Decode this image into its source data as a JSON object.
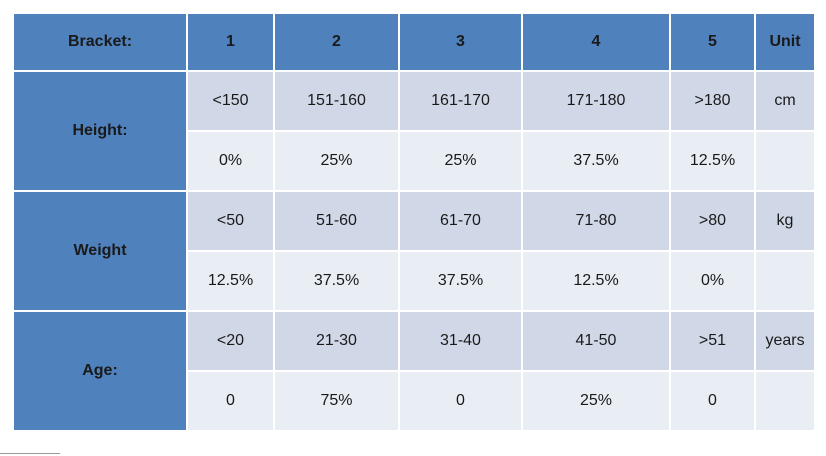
{
  "header": {
    "bracket_label": "Bracket:",
    "brackets": [
      "1",
      "2",
      "3",
      "4",
      "5"
    ],
    "unit_label": "Unit"
  },
  "rows": [
    {
      "label": "Height:",
      "ranges": [
        "<150",
        "151-160",
        "161-170",
        "171-180",
        ">180"
      ],
      "unit": "cm",
      "shares": [
        "0%",
        "25%",
        "25%",
        "37.5%",
        "12.5%"
      ]
    },
    {
      "label": "Weight",
      "ranges": [
        "<50",
        "51-60",
        "61-70",
        "71-80",
        ">80"
      ],
      "unit": "kg",
      "shares": [
        "12.5%",
        "37.5%",
        "37.5%",
        "12.5%",
        "0%"
      ]
    },
    {
      "label": "Age:",
      "ranges": [
        "<20",
        "21-30",
        "31-40",
        "41-50",
        ">51"
      ],
      "unit": "years",
      "shares": [
        "0",
        "75%",
        "0",
        "25%",
        "0"
      ]
    }
  ],
  "colors": {
    "header_bg": "#4f81bd",
    "range_row_bg": "#d0d8e8",
    "share_row_bg": "#e9edf4"
  }
}
